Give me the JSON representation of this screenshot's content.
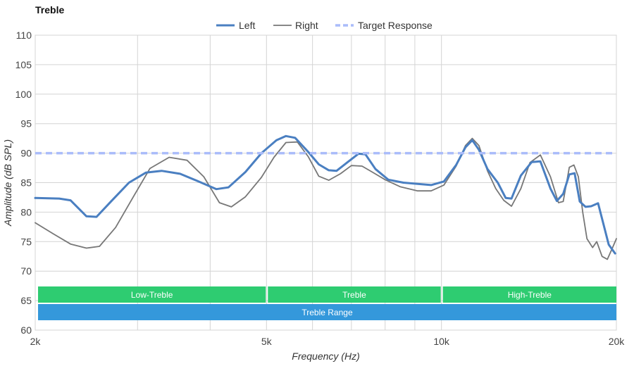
{
  "chart_data": {
    "type": "line",
    "title": "Treble",
    "xlabel": "Frequency (Hz)",
    "ylabel": "Amplitude (dB SPL)",
    "x_scale": "log",
    "xlim": [
      2000,
      20000
    ],
    "ylim": [
      60,
      110
    ],
    "x_ticks": [
      {
        "value": 2000,
        "label": "2k"
      },
      {
        "value": 5000,
        "label": "5k"
      },
      {
        "value": 10000,
        "label": "10k"
      },
      {
        "value": 20000,
        "label": "20k"
      }
    ],
    "x_minor_gridlines": [
      3000,
      4000,
      6000,
      7000,
      8000,
      9000
    ],
    "y_ticks": [
      60,
      65,
      70,
      75,
      80,
      85,
      90,
      95,
      100,
      105,
      110
    ],
    "grid": true,
    "legend_position": "top-center",
    "series": [
      {
        "name": "Left",
        "color": "#4a7fc1",
        "style": "solid-thick",
        "points": [
          [
            2000,
            82.4
          ],
          [
            2200,
            82.3
          ],
          [
            2300,
            82.0
          ],
          [
            2450,
            79.3
          ],
          [
            2550,
            79.2
          ],
          [
            2700,
            81.8
          ],
          [
            2900,
            85.0
          ],
          [
            3100,
            86.7
          ],
          [
            3300,
            87.0
          ],
          [
            3550,
            86.5
          ],
          [
            3800,
            85.3
          ],
          [
            4100,
            83.9
          ],
          [
            4300,
            84.2
          ],
          [
            4600,
            86.8
          ],
          [
            4900,
            90.0
          ],
          [
            5200,
            92.2
          ],
          [
            5400,
            92.9
          ],
          [
            5600,
            92.6
          ],
          [
            5900,
            90.2
          ],
          [
            6150,
            88.1
          ],
          [
            6400,
            87.1
          ],
          [
            6600,
            87.0
          ],
          [
            6900,
            88.5
          ],
          [
            7200,
            89.9
          ],
          [
            7400,
            89.8
          ],
          [
            7700,
            87.3
          ],
          [
            8100,
            85.5
          ],
          [
            8600,
            85.0
          ],
          [
            9100,
            84.8
          ],
          [
            9600,
            84.6
          ],
          [
            10100,
            85.2
          ],
          [
            10600,
            88.0
          ],
          [
            11000,
            91.0
          ],
          [
            11300,
            92.2
          ],
          [
            11600,
            90.6
          ],
          [
            12000,
            87.3
          ],
          [
            12500,
            85.0
          ],
          [
            12900,
            82.4
          ],
          [
            13200,
            82.3
          ],
          [
            13700,
            86.2
          ],
          [
            14300,
            88.5
          ],
          [
            14800,
            88.6
          ],
          [
            15400,
            84.0
          ],
          [
            15800,
            81.9
          ],
          [
            16200,
            83.1
          ],
          [
            16600,
            86.4
          ],
          [
            16950,
            86.6
          ],
          [
            17300,
            81.8
          ],
          [
            17700,
            80.9
          ],
          [
            18100,
            81.0
          ],
          [
            18600,
            81.5
          ],
          [
            19000,
            78.0
          ],
          [
            19400,
            74.5
          ],
          [
            19900,
            73.0
          ]
        ]
      },
      {
        "name": "Right",
        "color": "#777777",
        "style": "solid-thin",
        "points": [
          [
            2000,
            78.2
          ],
          [
            2150,
            76.3
          ],
          [
            2300,
            74.6
          ],
          [
            2450,
            73.9
          ],
          [
            2580,
            74.2
          ],
          [
            2750,
            77.4
          ],
          [
            2950,
            82.6
          ],
          [
            3150,
            87.4
          ],
          [
            3400,
            89.3
          ],
          [
            3650,
            88.8
          ],
          [
            3900,
            86.0
          ],
          [
            4150,
            81.6
          ],
          [
            4350,
            80.9
          ],
          [
            4600,
            82.6
          ],
          [
            4900,
            85.9
          ],
          [
            5150,
            89.3
          ],
          [
            5400,
            91.8
          ],
          [
            5650,
            91.9
          ],
          [
            5900,
            89.4
          ],
          [
            6150,
            86.1
          ],
          [
            6400,
            85.4
          ],
          [
            6700,
            86.5
          ],
          [
            7000,
            87.9
          ],
          [
            7300,
            87.8
          ],
          [
            7600,
            86.8
          ],
          [
            8000,
            85.5
          ],
          [
            8500,
            84.3
          ],
          [
            9100,
            83.6
          ],
          [
            9600,
            83.6
          ],
          [
            10100,
            84.6
          ],
          [
            10600,
            87.8
          ],
          [
            11000,
            91.3
          ],
          [
            11300,
            92.5
          ],
          [
            11600,
            91.3
          ],
          [
            12000,
            87.0
          ],
          [
            12400,
            84.0
          ],
          [
            12800,
            82.0
          ],
          [
            13200,
            81.0
          ],
          [
            13700,
            84.0
          ],
          [
            14200,
            88.4
          ],
          [
            14800,
            89.7
          ],
          [
            15400,
            86.0
          ],
          [
            15900,
            81.6
          ],
          [
            16200,
            81.8
          ],
          [
            16600,
            87.6
          ],
          [
            16900,
            88.0
          ],
          [
            17200,
            86.0
          ],
          [
            17500,
            80.0
          ],
          [
            17800,
            75.5
          ],
          [
            18200,
            74.0
          ],
          [
            18500,
            75.0
          ],
          [
            18900,
            72.5
          ],
          [
            19300,
            72.0
          ],
          [
            19700,
            74.0
          ],
          [
            20000,
            75.5
          ]
        ]
      },
      {
        "name": "Target Response",
        "color": "#aabcfa",
        "style": "dashed",
        "points": [
          [
            2000,
            90.0
          ],
          [
            20000,
            90.0
          ]
        ]
      }
    ],
    "bands": [
      {
        "label": "Low-Treble",
        "from": 2000,
        "to": 5000,
        "color": "#2ecc71",
        "row": 1
      },
      {
        "label": "Treble",
        "from": 5000,
        "to": 10000,
        "color": "#2ecc71",
        "row": 1
      },
      {
        "label": "High-Treble",
        "from": 10000,
        "to": 20000,
        "color": "#2ecc71",
        "row": 1
      },
      {
        "label": "Treble Range",
        "from": 2000,
        "to": 20000,
        "color": "#3498db",
        "row": 2
      }
    ]
  }
}
